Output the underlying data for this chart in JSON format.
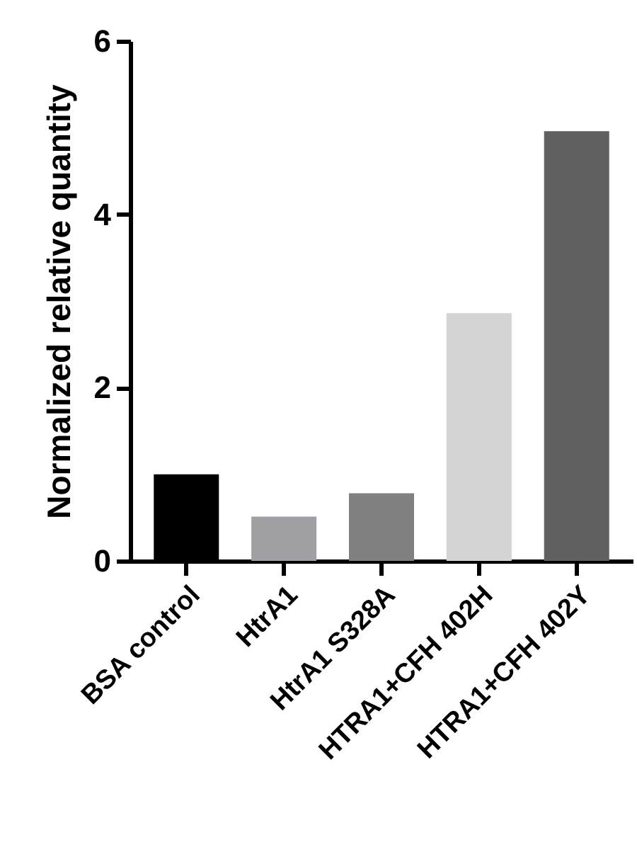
{
  "chart_data": {
    "type": "bar",
    "ylabel": "Normalized relative quantity",
    "categories": [
      "BSA control",
      "HtrA1",
      "HtrA1 S328A",
      "HTRA1+CFH 402H",
      "HTRA1+CFH 402Y"
    ],
    "values": [
      1.0,
      0.51,
      0.78,
      2.86,
      4.96
    ],
    "colors": [
      "#000000",
      "#a0a0a4",
      "#808080",
      "#d4d4d4",
      "#606060"
    ],
    "ylim": [
      0,
      6
    ],
    "yticks": [
      0,
      2,
      4,
      6
    ],
    "grid": false
  }
}
